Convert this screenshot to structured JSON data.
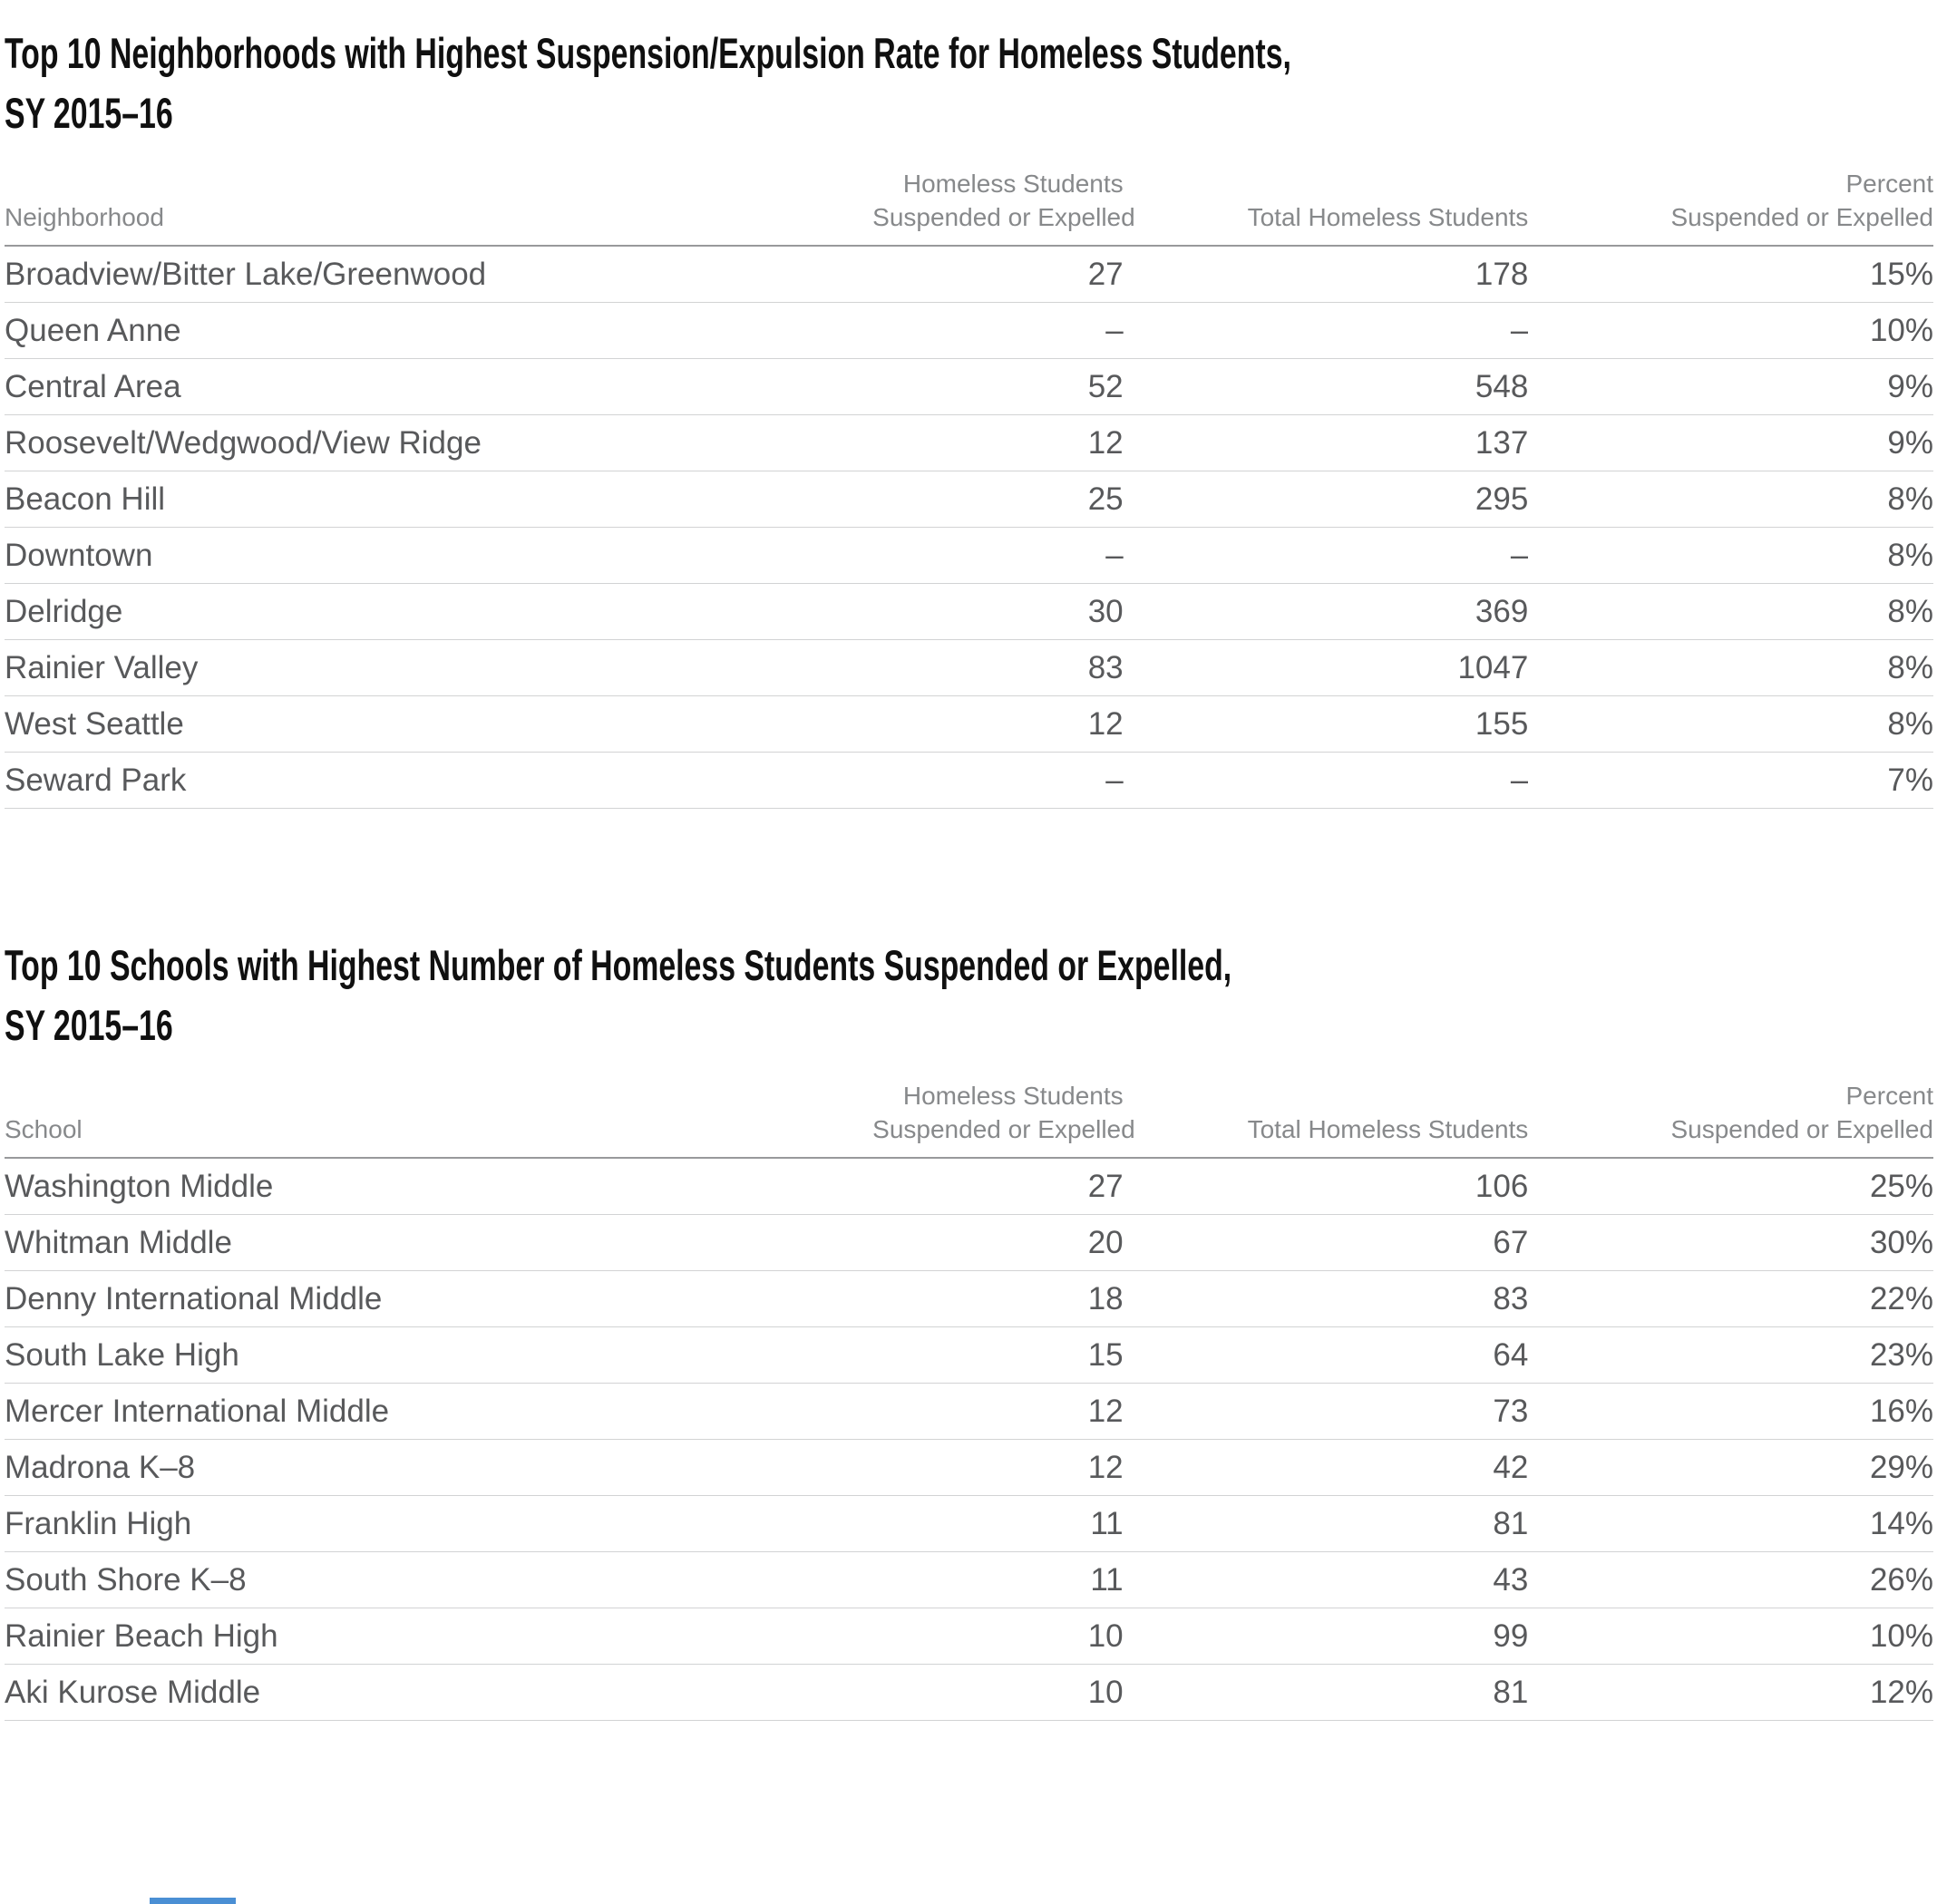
{
  "colors": {
    "title_text": "#101010",
    "header_text": "#87898b",
    "cell_text": "#58595b",
    "row_divider": "#d2d3d4",
    "header_rule": "#98999b",
    "accent_blue": "#4a8fd4",
    "background": "#ffffff"
  },
  "sections": [
    {
      "title_line1": "Top 10 Neighborhoods with Highest Suspension/Expulsion Rate for Homeless Students,",
      "title_line2": "SY 2015–16",
      "col1_header": "Neighborhood",
      "col2_header_line1": "Homeless Students",
      "col2_header_line2": "Suspended or Expelled",
      "col3_header": "Total Homeless Students",
      "col4_header_line1": "Percent",
      "col4_header_line2": "Suspended or Expelled"
    },
    {
      "title_line1": "Top 10 Schools with Highest Number of Homeless Students Suspended or Expelled,",
      "title_line2": "SY 2015–16",
      "col1_header": "School",
      "col2_header_line1": "Homeless Students",
      "col2_header_line2": "Suspended or Expelled",
      "col3_header": "Total Homeless Students",
      "col4_header_line1": "Percent",
      "col4_header_line2": "Suspended or Expelled"
    }
  ],
  "chart_data": [
    {
      "type": "table",
      "title": "Top 10 Neighborhoods with Highest Suspension/Expulsion Rate for Homeless Students, SY 2015–16",
      "columns": [
        "Neighborhood",
        "Homeless Students Suspended or Expelled",
        "Total Homeless Students",
        "Percent Suspended or Expelled"
      ],
      "rows": [
        [
          "Broadview/Bitter Lake/Greenwood",
          "27",
          "178",
          "15%"
        ],
        [
          "Queen Anne",
          "–",
          "–",
          "10%"
        ],
        [
          "Central Area",
          "52",
          "548",
          "9%"
        ],
        [
          "Roosevelt/Wedgwood/View Ridge",
          "12",
          "137",
          "9%"
        ],
        [
          "Beacon Hill",
          "25",
          "295",
          "8%"
        ],
        [
          "Downtown",
          "–",
          "–",
          "8%"
        ],
        [
          "Delridge",
          "30",
          "369",
          "8%"
        ],
        [
          "Rainier Valley",
          "83",
          "1047",
          "8%"
        ],
        [
          "West Seattle",
          "12",
          "155",
          "8%"
        ],
        [
          "Seward Park",
          "–",
          "–",
          "7%"
        ]
      ]
    },
    {
      "type": "table",
      "title": "Top 10 Schools with Highest Number of Homeless Students Suspended or Expelled, SY 2015–16",
      "columns": [
        "School",
        "Homeless Students Suspended or Expelled",
        "Total Homeless Students",
        "Percent Suspended or Expelled"
      ],
      "rows": [
        [
          "Washington Middle",
          "27",
          "106",
          "25%"
        ],
        [
          "Whitman Middle",
          "20",
          "67",
          "30%"
        ],
        [
          "Denny International Middle",
          "18",
          "83",
          "22%"
        ],
        [
          "South Lake High",
          "15",
          "64",
          "23%"
        ],
        [
          "Mercer International Middle",
          "12",
          "73",
          "16%"
        ],
        [
          "Madrona K–8",
          "12",
          "42",
          "29%"
        ],
        [
          "Franklin High",
          "11",
          "81",
          "14%"
        ],
        [
          "South Shore K–8",
          "11",
          "43",
          "26%"
        ],
        [
          "Rainier Beach High",
          "10",
          "99",
          "10%"
        ],
        [
          "Aki Kurose Middle",
          "10",
          "81",
          "12%"
        ]
      ]
    }
  ]
}
